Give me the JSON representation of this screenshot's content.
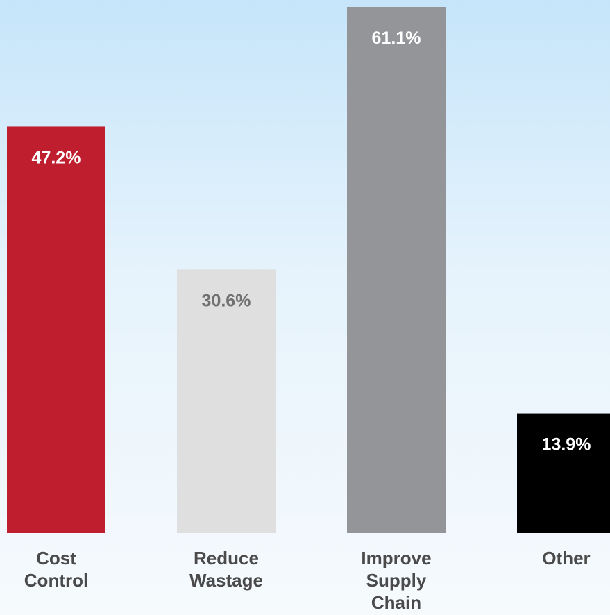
{
  "chart_data": {
    "type": "bar",
    "categories": [
      [
        "Cost",
        "Control"
      ],
      [
        "Reduce",
        "Wastage"
      ],
      [
        "Improve",
        "Supply",
        "Chain"
      ],
      [
        "Other"
      ]
    ],
    "values": [
      47.2,
      30.6,
      61.1,
      13.9
    ],
    "data_labels": [
      "47.2%",
      "30.6%",
      "61.1%",
      "13.9%"
    ],
    "bar_colors": [
      "#be1e2d",
      "#dfdfdf",
      "#939598",
      "#000000"
    ],
    "label_colors": [
      "#ffffff",
      "#707070",
      "#ffffff",
      "#ffffff"
    ],
    "ylim": [
      0,
      61.1
    ],
    "grid": false,
    "legend": "none"
  }
}
